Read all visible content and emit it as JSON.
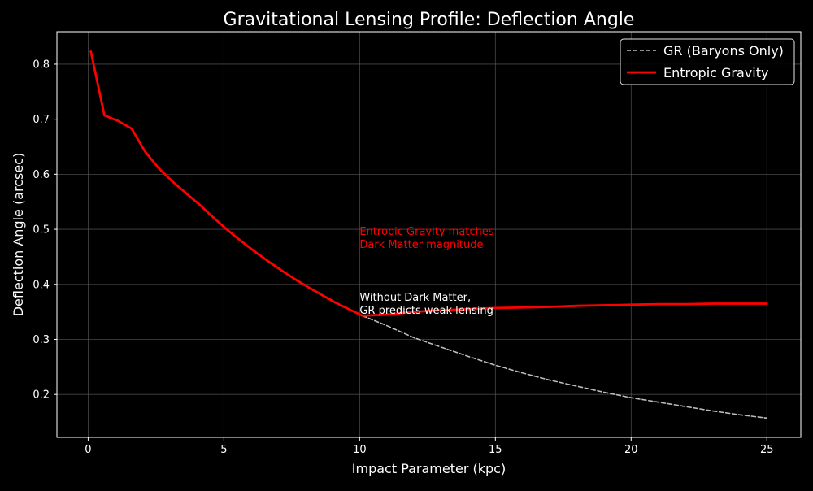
{
  "chart_data": {
    "type": "line",
    "title": "Gravitational Lensing Profile: Deflection Angle",
    "xlabel": "Impact Parameter (kpc)",
    "ylabel": "Deflection Angle (arcsec)",
    "xlim": [
      -1.15,
      26.25
    ],
    "ylim": [
      0.122,
      0.859
    ],
    "xticks": [
      0,
      5,
      10,
      15,
      20,
      25
    ],
    "yticks": [
      0.2,
      0.3,
      0.4,
      0.5,
      0.6,
      0.7,
      0.8
    ],
    "xtick_labels": [
      "0",
      "5",
      "10",
      "15",
      "20",
      "25"
    ],
    "ytick_labels": [
      "0.2",
      "0.3",
      "0.4",
      "0.5",
      "0.6",
      "0.7",
      "0.8"
    ],
    "grid": true,
    "legend_position": "top-right",
    "series": [
      {
        "name": "GR (Baryons Only)",
        "color": "#bdbdbd",
        "style": "dashed",
        "points": [
          [
            0.1,
            0.823
          ],
          [
            0.6,
            0.707
          ],
          [
            1.1,
            0.697
          ],
          [
            1.6,
            0.683
          ],
          [
            2.1,
            0.641
          ],
          [
            2.6,
            0.611
          ],
          [
            3.1,
            0.587
          ],
          [
            3.6,
            0.566
          ],
          [
            4.1,
            0.545
          ],
          [
            4.6,
            0.522
          ],
          [
            5.1,
            0.5
          ],
          [
            5.6,
            0.48
          ],
          [
            6.1,
            0.461
          ],
          [
            6.6,
            0.443
          ],
          [
            7.1,
            0.426
          ],
          [
            7.6,
            0.41
          ],
          [
            8.1,
            0.395
          ],
          [
            8.6,
            0.381
          ],
          [
            9.1,
            0.367
          ],
          [
            9.6,
            0.355
          ],
          [
            10.1,
            0.343
          ],
          [
            11.0,
            0.325
          ],
          [
            12.0,
            0.303
          ],
          [
            13.0,
            0.286
          ],
          [
            14.0,
            0.269
          ],
          [
            15.0,
            0.253
          ],
          [
            16.0,
            0.239
          ],
          [
            17.0,
            0.226
          ],
          [
            18.0,
            0.215
          ],
          [
            19.0,
            0.204
          ],
          [
            20.0,
            0.194
          ],
          [
            21.0,
            0.186
          ],
          [
            22.0,
            0.178
          ],
          [
            23.0,
            0.17
          ],
          [
            24.0,
            0.163
          ],
          [
            25.0,
            0.157
          ]
        ]
      },
      {
        "name": "Entropic Gravity",
        "color": "#ff0000",
        "style": "solid",
        "points": [
          [
            0.1,
            0.823
          ],
          [
            0.6,
            0.707
          ],
          [
            1.1,
            0.697
          ],
          [
            1.6,
            0.683
          ],
          [
            2.1,
            0.641
          ],
          [
            2.6,
            0.611
          ],
          [
            3.1,
            0.587
          ],
          [
            3.6,
            0.566
          ],
          [
            4.1,
            0.545
          ],
          [
            4.6,
            0.522
          ],
          [
            5.1,
            0.5
          ],
          [
            5.6,
            0.48
          ],
          [
            6.1,
            0.461
          ],
          [
            6.6,
            0.443
          ],
          [
            7.1,
            0.426
          ],
          [
            7.6,
            0.41
          ],
          [
            8.1,
            0.395
          ],
          [
            8.6,
            0.381
          ],
          [
            9.1,
            0.367
          ],
          [
            9.6,
            0.355
          ],
          [
            10.1,
            0.343
          ],
          [
            11.0,
            0.345
          ],
          [
            12.0,
            0.35
          ],
          [
            13.0,
            0.353
          ],
          [
            14.0,
            0.355
          ],
          [
            15.0,
            0.357
          ],
          [
            16.0,
            0.358
          ],
          [
            17.0,
            0.359
          ],
          [
            18.0,
            0.361
          ],
          [
            19.0,
            0.362
          ],
          [
            20.0,
            0.363
          ],
          [
            21.0,
            0.364
          ],
          [
            22.0,
            0.364
          ],
          [
            23.0,
            0.365
          ],
          [
            24.0,
            0.365
          ],
          [
            25.0,
            0.365
          ]
        ]
      }
    ],
    "annotations": [
      {
        "name": "entropic-annotation",
        "lines": [
          "Entropic Gravity matches",
          "Dark Matter magnitude"
        ],
        "x": 10.0,
        "y": 0.49,
        "color": "#ff0000"
      },
      {
        "name": "gr-annotation",
        "lines": [
          "Without Dark Matter,",
          "GR predicts weak lensing"
        ],
        "x": 10.0,
        "y": 0.37,
        "color": "#ffffff"
      }
    ]
  }
}
